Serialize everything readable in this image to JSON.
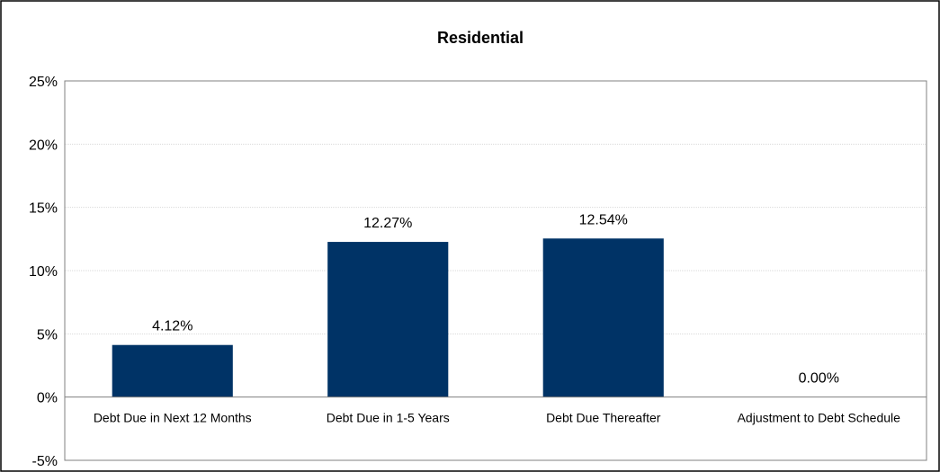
{
  "chart_data": {
    "type": "bar",
    "title": "Residential",
    "categories": [
      "Debt Due in Next 12 Months",
      "Debt Due in 1-5 Years",
      "Debt Due Thereafter",
      "Adjustment to Debt Schedule"
    ],
    "values": [
      4.12,
      12.27,
      12.54,
      0.0
    ],
    "data_labels": [
      "4.12%",
      "12.27%",
      "12.54%",
      "0.00%"
    ],
    "xlabel": "",
    "ylabel": "",
    "ylim": [
      -5,
      25
    ],
    "yticks": [
      25,
      20,
      15,
      10,
      5,
      0,
      -5
    ],
    "ytick_labels": [
      "25%",
      "20%",
      "15%",
      "10%",
      "5%",
      "0%",
      "-5%"
    ],
    "grid": true,
    "legend": "none",
    "bar_color": "#003366"
  }
}
